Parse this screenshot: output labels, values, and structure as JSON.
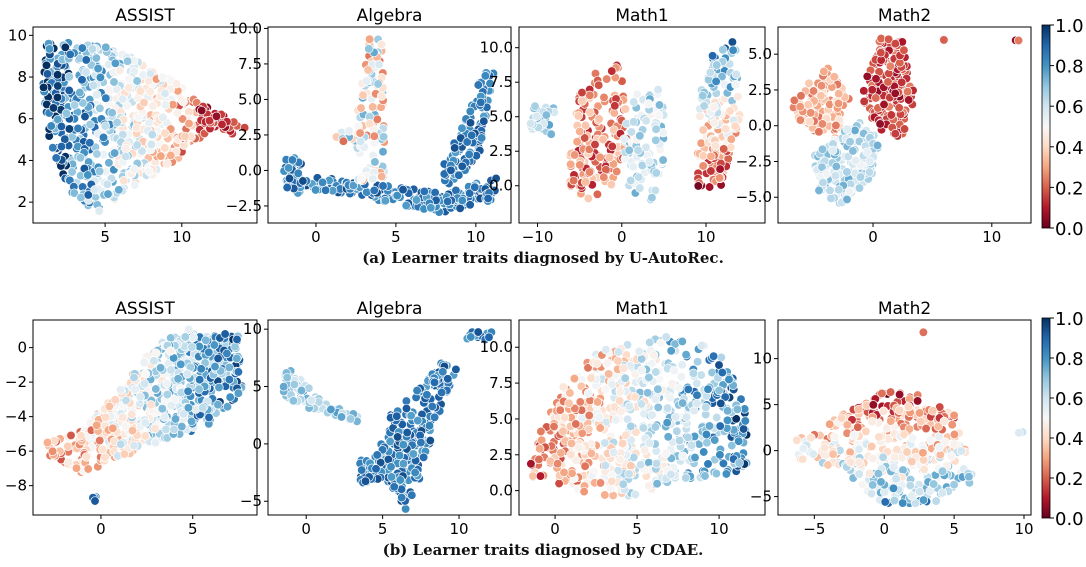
{
  "figure": {
    "caption_a": "(a) Learner traits diagnosed by U-AutoRec.",
    "caption_b": "(b) Learner traits diagnosed by CDAE.",
    "colorbar": {
      "colormap": "RdBu",
      "vmin": 0.0,
      "vmax": 1.0,
      "ticks": [
        "0.0",
        "0.2",
        "0.4",
        "0.6",
        "0.8",
        "1.0"
      ]
    }
  },
  "chart_data": [
    {
      "type": "scatter",
      "title": "ASSIST",
      "row": "a",
      "col": 1,
      "xlim": [
        0.3,
        14.9
      ],
      "ylim": [
        1.0,
        10.4
      ],
      "xticks": [
        5,
        10
      ],
      "xtick_labels": [
        "5",
        "10"
      ],
      "yticks": [
        2,
        4,
        6,
        8,
        10
      ],
      "ytick_labels": [
        "2",
        "4",
        "6",
        "8",
        "10"
      ],
      "point_count": 700,
      "clusters": [
        {
          "polygon": [
            [
              1.2,
              9.7
            ],
            [
              4.5,
              9.6
            ],
            [
              6.5,
              9.0
            ],
            [
              9.0,
              8.0
            ],
            [
              11.5,
              6.8
            ],
            [
              12.0,
              5.6
            ],
            [
              9.0,
              3.6
            ],
            [
              6.0,
              2.3
            ],
            [
              4.6,
              1.5
            ],
            [
              3.0,
              2.2
            ],
            [
              1.4,
              4.5
            ],
            [
              0.9,
              7.5
            ]
          ],
          "n": 640,
          "value_trend": "high left, low right"
        },
        {
          "polygon": [
            [
              11.0,
              6.8
            ],
            [
              14.2,
              5.6
            ],
            [
              13.6,
              5.2
            ],
            [
              11.2,
              5.6
            ]
          ],
          "n": 45,
          "value_trend": "low"
        }
      ]
    },
    {
      "type": "scatter",
      "title": "Algebra",
      "row": "a",
      "col": 2,
      "xlim": [
        -3.0,
        12.2
      ],
      "ylim": [
        -3.7,
        10.1
      ],
      "xticks": [
        0,
        5,
        10
      ],
      "xtick_labels": [
        "0",
        "5",
        "10"
      ],
      "yticks": [
        -2.5,
        0.0,
        2.5,
        5.0,
        7.5,
        10.0
      ],
      "ytick_labels": [
        "−2.5",
        "0.0",
        "2.5",
        "5.0",
        "7.5",
        "10.0"
      ],
      "point_count": 480,
      "clusters": [
        {
          "polygon": [
            [
              -2.0,
              -1.0
            ],
            [
              4.0,
              -2.2
            ],
            [
              8.0,
              -3.0
            ],
            [
              11.3,
              -2.0
            ],
            [
              11.3,
              -0.5
            ],
            [
              8.0,
              -1.6
            ],
            [
              4.0,
              -1.0
            ],
            [
              -2.0,
              -0.2
            ]
          ],
          "n": 200,
          "value_trend": "blue"
        },
        {
          "polygon": [
            [
              8.0,
              -1.5
            ],
            [
              10.2,
              1.0
            ],
            [
              10.8,
              5.0
            ],
            [
              11.3,
              7.2
            ],
            [
              10.3,
              6.8
            ],
            [
              9.5,
              4.0
            ],
            [
              7.8,
              0.0
            ]
          ],
          "n": 110,
          "value_trend": "blue"
        },
        {
          "polygon": [
            [
              2.4,
              -1.0
            ],
            [
              4.3,
              -0.5
            ],
            [
              4.2,
              9.2
            ],
            [
              3.3,
              9.6
            ],
            [
              2.6,
              4.0
            ]
          ],
          "n": 110,
          "value_trend": "mixed"
        },
        {
          "polygon": [
            [
              -2.0,
              -1.6
            ],
            [
              -0.8,
              -1.6
            ],
            [
              -0.8,
              0.9
            ],
            [
              -2.0,
              0.9
            ]
          ],
          "n": 35,
          "value_trend": "blue"
        },
        {
          "polygon": [
            [
              1.2,
              2.0
            ],
            [
              2.8,
              2.0
            ],
            [
              2.8,
              2.8
            ],
            [
              1.2,
              2.8
            ]
          ],
          "n": 10,
          "value_trend": "mixed"
        }
      ]
    },
    {
      "type": "scatter",
      "title": "Math1",
      "row": "a",
      "col": 3,
      "xlim": [
        -12.2,
        17.0
      ],
      "ylim": [
        -2.7,
        11.5
      ],
      "xticks": [
        -10,
        0,
        10
      ],
      "xtick_labels": [
        "−10",
        "0",
        "10"
      ],
      "yticks": [
        0.0,
        2.5,
        5.0,
        7.5,
        10.0
      ],
      "ytick_labels": [
        "0.0",
        "2.5",
        "5.0",
        "7.5",
        "10.0"
      ],
      "point_count": 520,
      "clusters": [
        {
          "polygon": [
            [
              -6.5,
              0.0
            ],
            [
              -4.0,
              -1.0
            ],
            [
              -1.5,
              -0.5
            ],
            [
              1.0,
              3.0
            ],
            [
              -0.2,
              8.8
            ],
            [
              -2.5,
              8.8
            ],
            [
              -5.0,
              7.0
            ],
            [
              -6.0,
              3.0
            ]
          ],
          "n": 180,
          "value_trend": "red-pink"
        },
        {
          "polygon": [
            [
              0.2,
              0.0
            ],
            [
              3.5,
              -1.5
            ],
            [
              5.0,
              2.0
            ],
            [
              5.0,
              7.0
            ],
            [
              1.5,
              7.0
            ],
            [
              0.2,
              3.5
            ]
          ],
          "n": 90,
          "value_trend": "blue-grey"
        },
        {
          "polygon": [
            [
              -11.0,
              4.0
            ],
            [
              -8.0,
              3.5
            ],
            [
              -7.5,
              6.0
            ],
            [
              -10.5,
              6.0
            ]
          ],
          "n": 35,
          "value_trend": "light blue"
        },
        {
          "polygon": [
            [
              9.0,
              -0.2
            ],
            [
              12.0,
              0.0
            ],
            [
              14.0,
              5.0
            ],
            [
              13.5,
              10.5
            ],
            [
              11.0,
              10.0
            ],
            [
              9.0,
              6.0
            ]
          ],
          "n": 170,
          "value_trend": "red low, blue high"
        }
      ]
    },
    {
      "type": "scatter",
      "title": "Math2",
      "row": "a",
      "col": 4,
      "xlim": [
        -8.0,
        13.3
      ],
      "ylim": [
        -6.8,
        6.9
      ],
      "xticks": [
        0,
        10
      ],
      "xtick_labels": [
        "0",
        "10"
      ],
      "yticks": [
        -5.0,
        -2.5,
        0.0,
        2.5,
        5.0
      ],
      "ytick_labels": [
        "−5.0",
        "−2.5",
        "0.0",
        "2.5",
        "5.0"
      ],
      "point_count": 560,
      "clusters": [
        {
          "polygon": [
            [
              -1.0,
              2.0
            ],
            [
              0.5,
              6.2
            ],
            [
              2.5,
              6.0
            ],
            [
              3.5,
              2.0
            ],
            [
              2.5,
              -1.0
            ],
            [
              0.0,
              0.0
            ]
          ],
          "n": 200,
          "value_trend": "red"
        },
        {
          "polygon": [
            [
              -7.0,
              1.5
            ],
            [
              -4.0,
              4.3
            ],
            [
              -2.0,
              2.0
            ],
            [
              -3.0,
              -1.0
            ],
            [
              -6.0,
              0.0
            ]
          ],
          "n": 110,
          "value_trend": "pink"
        },
        {
          "polygon": [
            [
              -5.0,
              -2.0
            ],
            [
              -1.5,
              0.5
            ],
            [
              0.5,
              -1.0
            ],
            [
              0.0,
              -3.5
            ],
            [
              -2.5,
              -5.5
            ],
            [
              -4.5,
              -5.0
            ]
          ],
          "n": 200,
          "value_trend": "blue-white"
        },
        {
          "polygon": [
            [
              5.0,
              5.7
            ],
            [
              6.0,
              6.2
            ],
            [
              6.0,
              5.7
            ]
          ],
          "n": 2,
          "value_trend": "red"
        },
        {
          "polygon": [
            [
              11.8,
              5.8
            ],
            [
              12.3,
              6.2
            ],
            [
              12.3,
              5.8
            ]
          ],
          "n": 2,
          "value_trend": "red"
        }
      ]
    },
    {
      "type": "scatter",
      "title": "ASSIST",
      "row": "b",
      "col": 1,
      "xlim": [
        -3.7,
        8.5
      ],
      "ylim": [
        -9.7,
        1.6
      ],
      "xticks": [
        0,
        5
      ],
      "xtick_labels": [
        "0",
        "5"
      ],
      "yticks": [
        -8,
        -6,
        -4,
        -2,
        0
      ],
      "ytick_labels": [
        "−8",
        "−6",
        "−4",
        "−2",
        "0"
      ],
      "point_count": 700,
      "clusters": [
        {
          "polygon": [
            [
              -3.2,
              -6.0
            ],
            [
              -1.0,
              -7.3
            ],
            [
              3.0,
              -5.5
            ],
            [
              6.0,
              -4.5
            ],
            [
              7.9,
              -2.5
            ],
            [
              7.5,
              0.8
            ],
            [
              5.0,
              1.2
            ],
            [
              3.0,
              0.2
            ],
            [
              1.0,
              -2.5
            ],
            [
              -1.0,
              -4.8
            ],
            [
              -3.0,
              -5.5
            ]
          ],
          "n": 680,
          "value_trend": "red left, blue right"
        },
        {
          "polygon": [
            [
              -0.5,
              -9.0
            ],
            [
              -0.1,
              -9.0
            ],
            [
              -0.1,
              -8.6
            ],
            [
              -0.5,
              -8.6
            ]
          ],
          "n": 4,
          "value_trend": "blue"
        }
      ]
    },
    {
      "type": "scatter",
      "title": "Algebra",
      "row": "b",
      "col": 2,
      "xlim": [
        -2.5,
        13.4
      ],
      "ylim": [
        -6.2,
        10.8
      ],
      "xticks": [
        0,
        5,
        10
      ],
      "xtick_labels": [
        "0",
        "5",
        "10"
      ],
      "yticks": [
        -5,
        0,
        5,
        10
      ],
      "ytick_labels": [
        "−5",
        "0",
        "5",
        "10"
      ],
      "point_count": 500,
      "clusters": [
        {
          "polygon": [
            [
              4.5,
              -1.5
            ],
            [
              6.5,
              -5.8
            ],
            [
              7.5,
              -3.0
            ],
            [
              8.5,
              2.0
            ],
            [
              9.8,
              6.5
            ],
            [
              9.0,
              7.3
            ],
            [
              7.5,
              5.0
            ],
            [
              5.5,
              2.5
            ]
          ],
          "n": 260,
          "value_trend": "blue"
        },
        {
          "polygon": [
            [
              -1.5,
              3.8
            ],
            [
              1.0,
              2.8
            ],
            [
              3.5,
              1.8
            ],
            [
              3.5,
              2.4
            ],
            [
              1.0,
              3.7
            ],
            [
              -1.0,
              6.5
            ],
            [
              -1.5,
              6.0
            ]
          ],
          "n": 90,
          "value_trend": "light blue"
        },
        {
          "polygon": [
            [
              3.5,
              -3.5
            ],
            [
              5.0,
              -3.3
            ],
            [
              5.0,
              -0.5
            ],
            [
              3.5,
              -1.5
            ]
          ],
          "n": 40,
          "value_trend": "blue"
        },
        {
          "polygon": [
            [
              10.5,
              9.0
            ],
            [
              12.3,
              9.0
            ],
            [
              12.3,
              9.8
            ],
            [
              10.5,
              9.8
            ]
          ],
          "n": 15,
          "value_trend": "blue"
        }
      ]
    },
    {
      "type": "scatter",
      "title": "Math1",
      "row": "b",
      "col": 3,
      "xlim": [
        -2.2,
        12.8
      ],
      "ylim": [
        -1.7,
        11.9
      ],
      "xticks": [
        0,
        5,
        10
      ],
      "xtick_labels": [
        "0",
        "5",
        "10"
      ],
      "yticks": [
        0.0,
        2.5,
        5.0,
        7.5,
        10.0
      ],
      "ytick_labels": [
        "0.0",
        "2.5",
        "5.0",
        "7.5",
        "10.0"
      ],
      "point_count": 720,
      "clusters": [
        {
          "polygon": [
            [
              -1.8,
              1.0
            ],
            [
              1.0,
              0.0
            ],
            [
              4.0,
              -0.5
            ],
            [
              8.0,
              0.5
            ],
            [
              12.0,
              1.5
            ],
            [
              11.5,
              6.5
            ],
            [
              10.0,
              10.0
            ],
            [
              6.0,
              11.0
            ],
            [
              3.0,
              10.0
            ],
            [
              0.5,
              7.5
            ],
            [
              -1.0,
              4.0
            ]
          ],
          "n": 700,
          "value_trend": "red left, blue right"
        }
      ]
    },
    {
      "type": "scatter",
      "title": "Math2",
      "row": "b",
      "col": 4,
      "xlim": [
        -7.6,
        10.5
      ],
      "ylim": [
        -7.0,
        14.2
      ],
      "xticks": [
        -5,
        0,
        5,
        10
      ],
      "xtick_labels": [
        "−5",
        "0",
        "5",
        "10"
      ],
      "yticks": [
        -5,
        0,
        5,
        10
      ],
      "ytick_labels": [
        "−5",
        "0",
        "5",
        "10"
      ],
      "point_count": 450,
      "clusters": [
        {
          "polygon": [
            [
              -6.5,
              1.0
            ],
            [
              -3.0,
              4.0
            ],
            [
              0.0,
              6.5
            ],
            [
              3.0,
              6.0
            ],
            [
              5.0,
              4.0
            ],
            [
              6.5,
              -3.5
            ],
            [
              4.0,
              -5.5
            ],
            [
              0.0,
              -6.0
            ],
            [
              -3.0,
              -2.0
            ],
            [
              -6.0,
              -1.0
            ]
          ],
          "n": 430,
          "value_trend": "red top, blue-white bottom"
        },
        {
          "polygon": [
            [
              2.5,
              12.8
            ],
            [
              2.9,
              12.8
            ],
            [
              2.9,
              13.2
            ],
            [
              2.5,
              13.2
            ]
          ],
          "n": 1,
          "value_trend": "red"
        },
        {
          "polygon": [
            [
              9.5,
              1.9
            ],
            [
              10.0,
              1.9
            ],
            [
              10.0,
              2.2
            ],
            [
              9.5,
              2.2
            ]
          ],
          "n": 2,
          "value_trend": "light"
        }
      ]
    }
  ]
}
